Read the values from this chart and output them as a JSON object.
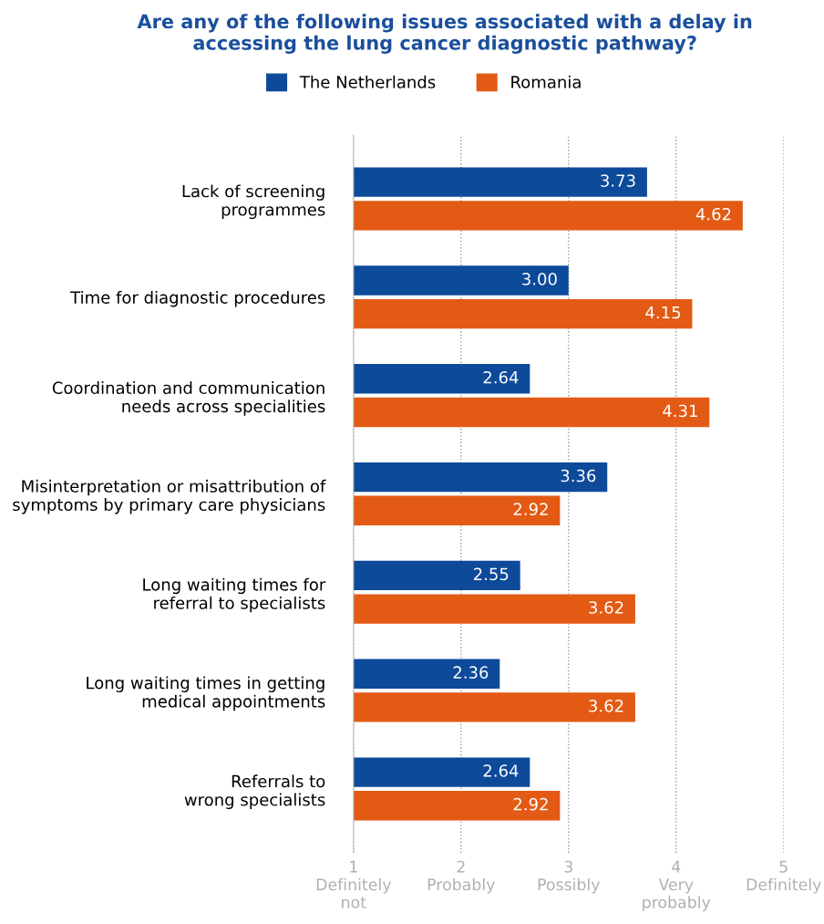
{
  "chart_data": {
    "type": "bar",
    "orientation": "horizontal",
    "title": "Are any of the following issues associated with a delay in\naccessing the lung cancer diagnostic pathway?",
    "categories": [
      "Lack of screening\nprogrammes",
      "Time for diagnostic procedures",
      "Coordination and communication\nneeds across specialities",
      "Misinterpretation or misattribution of\nsymptoms by primary care physicians",
      "Long waiting times for\nreferral to specialists",
      "Long waiting times in getting\nmedical appointments",
      "Referrals to\nwrong specialists"
    ],
    "series": [
      {
        "name": "The Netherlands",
        "color": "#0d4a9a",
        "values": [
          3.73,
          3.0,
          2.64,
          3.36,
          2.55,
          2.36,
          2.64
        ],
        "value_labels": [
          "3.73",
          "3.00",
          "2.64",
          "3.36",
          "2.55",
          "2.36",
          "2.64"
        ]
      },
      {
        "name": "Romania",
        "color": "#e35a14",
        "values": [
          4.62,
          4.15,
          4.31,
          2.92,
          3.62,
          3.62,
          2.92
        ],
        "value_labels": [
          "4.62",
          "4.15",
          "4.31",
          "2.92",
          "3.62",
          "3.62",
          "2.92"
        ]
      }
    ],
    "xlim": [
      1,
      5
    ],
    "xticks": [
      {
        "value": 1,
        "label": "1\nDefinitely\nnot"
      },
      {
        "value": 2,
        "label": "2\nProbably"
      },
      {
        "value": 3,
        "label": "3\nPossibly"
      },
      {
        "value": 4,
        "label": "4\nVery\nprobably"
      },
      {
        "value": 5,
        "label": "5\nDefinitely"
      }
    ],
    "grid": "x",
    "legend": "top"
  }
}
